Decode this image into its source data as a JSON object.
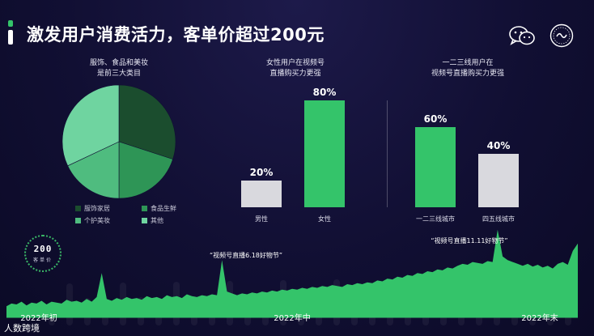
{
  "header": {
    "title": "激发用户消费活力，客单价超过200元",
    "icons": [
      "wechat-icon",
      "channels-seal-icon"
    ]
  },
  "footer": {
    "watermark": "人数跨境"
  },
  "colors": {
    "background": "#110f33",
    "green": "#34c46a",
    "light_gray": "#d9d9de",
    "pie": [
      "#1b4d2e",
      "#2e9556",
      "#4fbc7f",
      "#6fd4a0"
    ]
  },
  "chart_data": [
    {
      "type": "pie",
      "title": "服饰、食品和美妆\n是前三大类目",
      "categories": [
        "服饰家居",
        "食品生鲜",
        "个护美妆",
        "其他"
      ],
      "values": [
        30,
        20,
        18,
        32
      ],
      "colors": [
        "#1b4d2e",
        "#2e9556",
        "#4fbc7f",
        "#6fd4a0"
      ],
      "legend_placement": "bottom"
    },
    {
      "type": "bar",
      "title": "女性用户在视频号\n直播购买力更强",
      "categories": [
        "男性",
        "女性"
      ],
      "values": [
        20,
        80
      ],
      "value_labels": [
        "20%",
        "80%"
      ],
      "colors": [
        "#d9d9de",
        "#34c46a"
      ],
      "ylim": [
        0,
        100
      ]
    },
    {
      "type": "bar",
      "title": "一二三线用户在\n视频号直播购买力更强",
      "categories": [
        "一二三线城市",
        "四五线城市"
      ],
      "values": [
        60,
        40
      ],
      "value_labels": [
        "60%",
        "40%"
      ],
      "colors": [
        "#34c46a",
        "#d9d9de"
      ],
      "ylim": [
        0,
        100
      ]
    },
    {
      "type": "area",
      "badge_value": "200",
      "badge_label": "客单价",
      "x_tick_labels": [
        "2022年初",
        "2022年中",
        "2022年末"
      ],
      "annotations": [
        "“视频号直播6.18好物节”",
        "“视频号直播11.11好物节”"
      ],
      "ylim": [
        0,
        100
      ],
      "values": [
        12,
        15,
        14,
        17,
        13,
        16,
        15,
        18,
        14,
        17,
        16,
        15,
        19,
        17,
        18,
        16,
        20,
        17,
        22,
        48,
        20,
        18,
        21,
        19,
        22,
        20,
        21,
        19,
        23,
        21,
        22,
        20,
        24,
        22,
        23,
        21,
        25,
        23,
        22,
        24,
        23,
        25,
        24,
        62,
        28,
        26,
        24,
        26,
        25,
        27,
        26,
        28,
        27,
        29,
        28,
        30,
        29,
        31,
        30,
        32,
        31,
        33,
        32,
        34,
        33,
        35,
        34,
        33,
        36,
        35,
        37,
        36,
        38,
        37,
        40,
        39,
        42,
        41,
        44,
        43,
        46,
        45,
        48,
        47,
        50,
        49,
        52,
        51,
        54,
        53,
        56,
        58,
        57,
        60,
        59,
        58,
        61,
        60,
        95,
        66,
        62,
        60,
        58,
        56,
        58,
        55,
        57,
        54,
        56,
        53,
        58,
        60,
        57,
        72,
        80
      ]
    }
  ]
}
